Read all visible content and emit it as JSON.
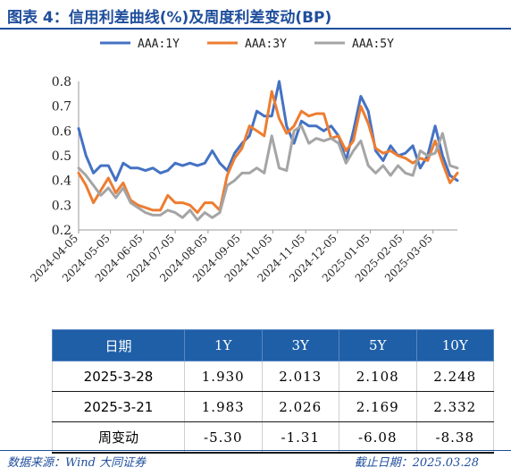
{
  "title": "图表 4：信用利差曲线(%)及周度利差变动(BP)",
  "chart_data": {
    "type": "line",
    "x": [
      "2024-04-05",
      "2024-04-12",
      "2024-04-19",
      "2024-04-26",
      "2024-05-03",
      "2024-05-10",
      "2024-05-17",
      "2024-05-24",
      "2024-05-31",
      "2024-06-07",
      "2024-06-14",
      "2024-06-21",
      "2024-06-28",
      "2024-07-05",
      "2024-07-12",
      "2024-07-19",
      "2024-07-26",
      "2024-08-02",
      "2024-08-09",
      "2024-08-16",
      "2024-08-23",
      "2024-08-30",
      "2024-09-06",
      "2024-09-13",
      "2024-09-20",
      "2024-09-27",
      "2024-10-04",
      "2024-10-11",
      "2024-10-18",
      "2024-10-25",
      "2024-11-01",
      "2024-11-08",
      "2024-11-15",
      "2024-11-22",
      "2024-11-29",
      "2024-12-06",
      "2024-12-13",
      "2024-12-20",
      "2024-12-27",
      "2025-01-03",
      "2025-01-10",
      "2025-01-17",
      "2025-01-24",
      "2025-01-31",
      "2025-02-07",
      "2025-02-14",
      "2025-02-21",
      "2025-02-28",
      "2025-03-07",
      "2025-03-14",
      "2025-03-21",
      "2025-03-28"
    ],
    "xticks": [
      "2024-04-05",
      "2024-05-05",
      "2024-06-05",
      "2024-07-05",
      "2024-08-05",
      "2024-09-05",
      "2024-10-05",
      "2024-11-05",
      "2024-12-05",
      "2025-01-05",
      "2025-02-05",
      "2025-03-05"
    ],
    "ylim": [
      0.2,
      0.8
    ],
    "yticks": [
      "0.2",
      "0.3",
      "0.4",
      "0.5",
      "0.6",
      "0.7",
      "0.8"
    ],
    "legend_position": "top",
    "series": [
      {
        "name": "AAA:1Y",
        "color": "#4472c4",
        "values": [
          0.61,
          0.5,
          0.43,
          0.46,
          0.46,
          0.4,
          0.47,
          0.45,
          0.45,
          0.44,
          0.45,
          0.43,
          0.44,
          0.47,
          0.46,
          0.47,
          0.46,
          0.47,
          0.52,
          0.47,
          0.44,
          0.51,
          0.55,
          0.58,
          0.68,
          0.66,
          0.66,
          0.8,
          0.62,
          0.55,
          0.64,
          0.62,
          0.62,
          0.6,
          0.62,
          0.58,
          0.48,
          0.6,
          0.74,
          0.68,
          0.52,
          0.48,
          0.54,
          0.5,
          0.51,
          0.54,
          0.45,
          0.5,
          0.62,
          0.5,
          0.42,
          0.4
        ]
      },
      {
        "name": "AAA:3Y",
        "color": "#ed7d31",
        "values": [
          0.43,
          0.38,
          0.31,
          0.36,
          0.41,
          0.35,
          0.39,
          0.32,
          0.3,
          0.29,
          0.28,
          0.28,
          0.34,
          0.31,
          0.31,
          0.3,
          0.27,
          0.31,
          0.31,
          0.28,
          0.42,
          0.49,
          0.53,
          0.62,
          0.6,
          0.58,
          0.76,
          0.65,
          0.59,
          0.62,
          0.68,
          0.66,
          0.67,
          0.67,
          0.57,
          0.58,
          0.52,
          0.56,
          0.7,
          0.63,
          0.53,
          0.51,
          0.52,
          0.5,
          0.49,
          0.47,
          0.49,
          0.48,
          0.56,
          0.47,
          0.39,
          0.43
        ]
      },
      {
        "name": "AAA:5Y",
        "color": "#a5a5a5",
        "values": [
          0.45,
          0.42,
          0.38,
          0.34,
          0.37,
          0.33,
          0.37,
          0.31,
          0.29,
          0.27,
          0.26,
          0.26,
          0.28,
          0.27,
          0.25,
          0.28,
          0.24,
          0.27,
          0.25,
          0.27,
          0.38,
          0.4,
          0.43,
          0.43,
          0.45,
          0.43,
          0.58,
          0.45,
          0.44,
          0.6,
          0.62,
          0.55,
          0.57,
          0.56,
          0.57,
          0.55,
          0.47,
          0.52,
          0.56,
          0.46,
          0.43,
          0.46,
          0.42,
          0.46,
          0.43,
          0.42,
          0.52,
          0.5,
          0.51,
          0.59,
          0.46,
          0.45
        ]
      }
    ]
  },
  "table": {
    "headers": [
      "日期",
      "1Y",
      "3Y",
      "5Y",
      "10Y"
    ],
    "rows": [
      [
        "2025-3-28",
        "1.930",
        "2.013",
        "2.108",
        "2.248"
      ],
      [
        "2025-3-21",
        "1.983",
        "2.026",
        "2.169",
        "2.332"
      ],
      [
        "周变动",
        "-5.30",
        "-1.31",
        "-6.08",
        "-8.38"
      ]
    ]
  },
  "footer": {
    "source": "数据来源：Wind 大同证券",
    "date": "截止日期：2025.03.28"
  }
}
